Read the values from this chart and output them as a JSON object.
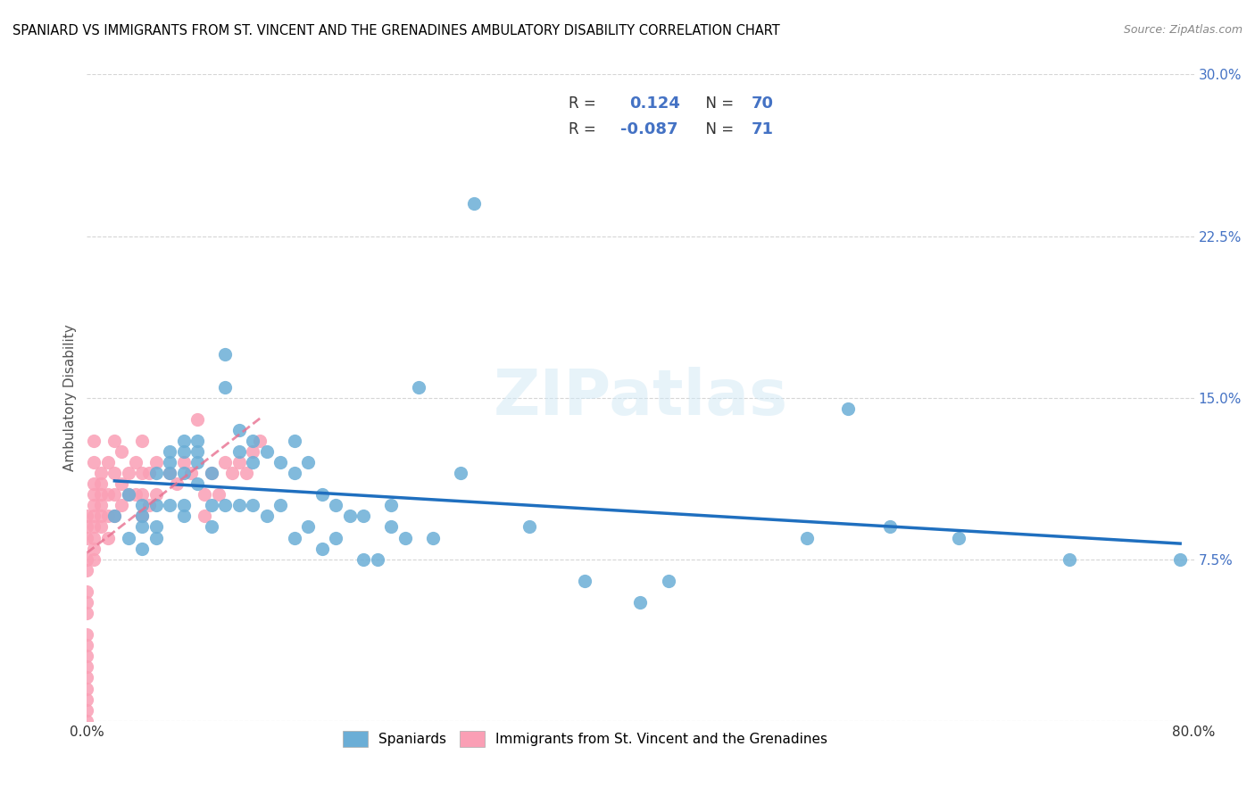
{
  "title": "SPANIARD VS IMMIGRANTS FROM ST. VINCENT AND THE GRENADINES AMBULATORY DISABILITY CORRELATION CHART",
  "source": "Source: ZipAtlas.com",
  "ylabel": "Ambulatory Disability",
  "xlabel": "",
  "xlim": [
    0.0,
    0.8
  ],
  "ylim": [
    0.0,
    0.3
  ],
  "xticks": [
    0.0,
    0.1,
    0.2,
    0.3,
    0.4,
    0.5,
    0.6,
    0.7,
    0.8
  ],
  "xticklabels": [
    "0.0%",
    "",
    "",
    "",
    "",
    "",
    "",
    "",
    "80.0%"
  ],
  "yticks": [
    0.0,
    0.075,
    0.15,
    0.225,
    0.3
  ],
  "yticklabels": [
    "",
    "7.5%",
    "15.0%",
    "22.5%",
    "30.0%"
  ],
  "legend_r1": "R =  0.124",
  "legend_n1": "N = 70",
  "legend_r2": "R = -0.087",
  "legend_n2": "N = 71",
  "blue_color": "#6baed6",
  "pink_color": "#fa9fb5",
  "line_blue": "#1f6fbf",
  "line_pink": "#e87090",
  "watermark": "ZIPatlas",
  "spaniards_x": [
    0.02,
    0.03,
    0.03,
    0.04,
    0.04,
    0.04,
    0.04,
    0.05,
    0.05,
    0.05,
    0.05,
    0.06,
    0.06,
    0.06,
    0.06,
    0.07,
    0.07,
    0.07,
    0.07,
    0.07,
    0.08,
    0.08,
    0.08,
    0.08,
    0.09,
    0.09,
    0.09,
    0.1,
    0.1,
    0.1,
    0.11,
    0.11,
    0.11,
    0.12,
    0.12,
    0.12,
    0.13,
    0.13,
    0.14,
    0.14,
    0.15,
    0.15,
    0.15,
    0.16,
    0.16,
    0.17,
    0.17,
    0.18,
    0.18,
    0.19,
    0.2,
    0.2,
    0.21,
    0.22,
    0.22,
    0.23,
    0.24,
    0.25,
    0.27,
    0.28,
    0.32,
    0.36,
    0.4,
    0.42,
    0.52,
    0.55,
    0.58,
    0.63,
    0.71,
    0.79
  ],
  "spaniards_y": [
    0.095,
    0.085,
    0.105,
    0.095,
    0.09,
    0.1,
    0.08,
    0.115,
    0.1,
    0.09,
    0.085,
    0.125,
    0.12,
    0.115,
    0.1,
    0.13,
    0.125,
    0.115,
    0.1,
    0.095,
    0.13,
    0.125,
    0.12,
    0.11,
    0.115,
    0.1,
    0.09,
    0.17,
    0.155,
    0.1,
    0.135,
    0.125,
    0.1,
    0.13,
    0.12,
    0.1,
    0.125,
    0.095,
    0.12,
    0.1,
    0.13,
    0.115,
    0.085,
    0.12,
    0.09,
    0.105,
    0.08,
    0.1,
    0.085,
    0.095,
    0.095,
    0.075,
    0.075,
    0.1,
    0.09,
    0.085,
    0.155,
    0.085,
    0.115,
    0.24,
    0.09,
    0.065,
    0.055,
    0.065,
    0.085,
    0.145,
    0.09,
    0.085,
    0.075,
    0.075
  ],
  "immigrants_x": [
    0.0,
    0.0,
    0.0,
    0.0,
    0.0,
    0.0,
    0.0,
    0.0,
    0.0,
    0.0,
    0.0,
    0.0,
    0.0,
    0.0,
    0.0,
    0.0,
    0.0,
    0.005,
    0.005,
    0.005,
    0.005,
    0.005,
    0.005,
    0.005,
    0.005,
    0.005,
    0.005,
    0.01,
    0.01,
    0.01,
    0.01,
    0.01,
    0.01,
    0.015,
    0.015,
    0.015,
    0.015,
    0.02,
    0.02,
    0.02,
    0.02,
    0.025,
    0.025,
    0.025,
    0.03,
    0.03,
    0.035,
    0.035,
    0.04,
    0.04,
    0.04,
    0.04,
    0.045,
    0.045,
    0.05,
    0.05,
    0.06,
    0.065,
    0.07,
    0.075,
    0.08,
    0.085,
    0.085,
    0.09,
    0.095,
    0.1,
    0.105,
    0.11,
    0.115,
    0.12,
    0.125
  ],
  "immigrants_y": [
    0.095,
    0.09,
    0.085,
    0.075,
    0.07,
    0.06,
    0.055,
    0.05,
    0.04,
    0.035,
    0.03,
    0.025,
    0.02,
    0.015,
    0.01,
    0.005,
    0.0,
    0.13,
    0.12,
    0.11,
    0.105,
    0.1,
    0.095,
    0.09,
    0.085,
    0.08,
    0.075,
    0.115,
    0.11,
    0.105,
    0.1,
    0.095,
    0.09,
    0.12,
    0.105,
    0.095,
    0.085,
    0.13,
    0.115,
    0.105,
    0.095,
    0.125,
    0.11,
    0.1,
    0.115,
    0.105,
    0.12,
    0.105,
    0.13,
    0.115,
    0.105,
    0.095,
    0.115,
    0.1,
    0.12,
    0.105,
    0.115,
    0.11,
    0.12,
    0.115,
    0.14,
    0.105,
    0.095,
    0.115,
    0.105,
    0.12,
    0.115,
    0.12,
    0.115,
    0.125,
    0.13
  ]
}
